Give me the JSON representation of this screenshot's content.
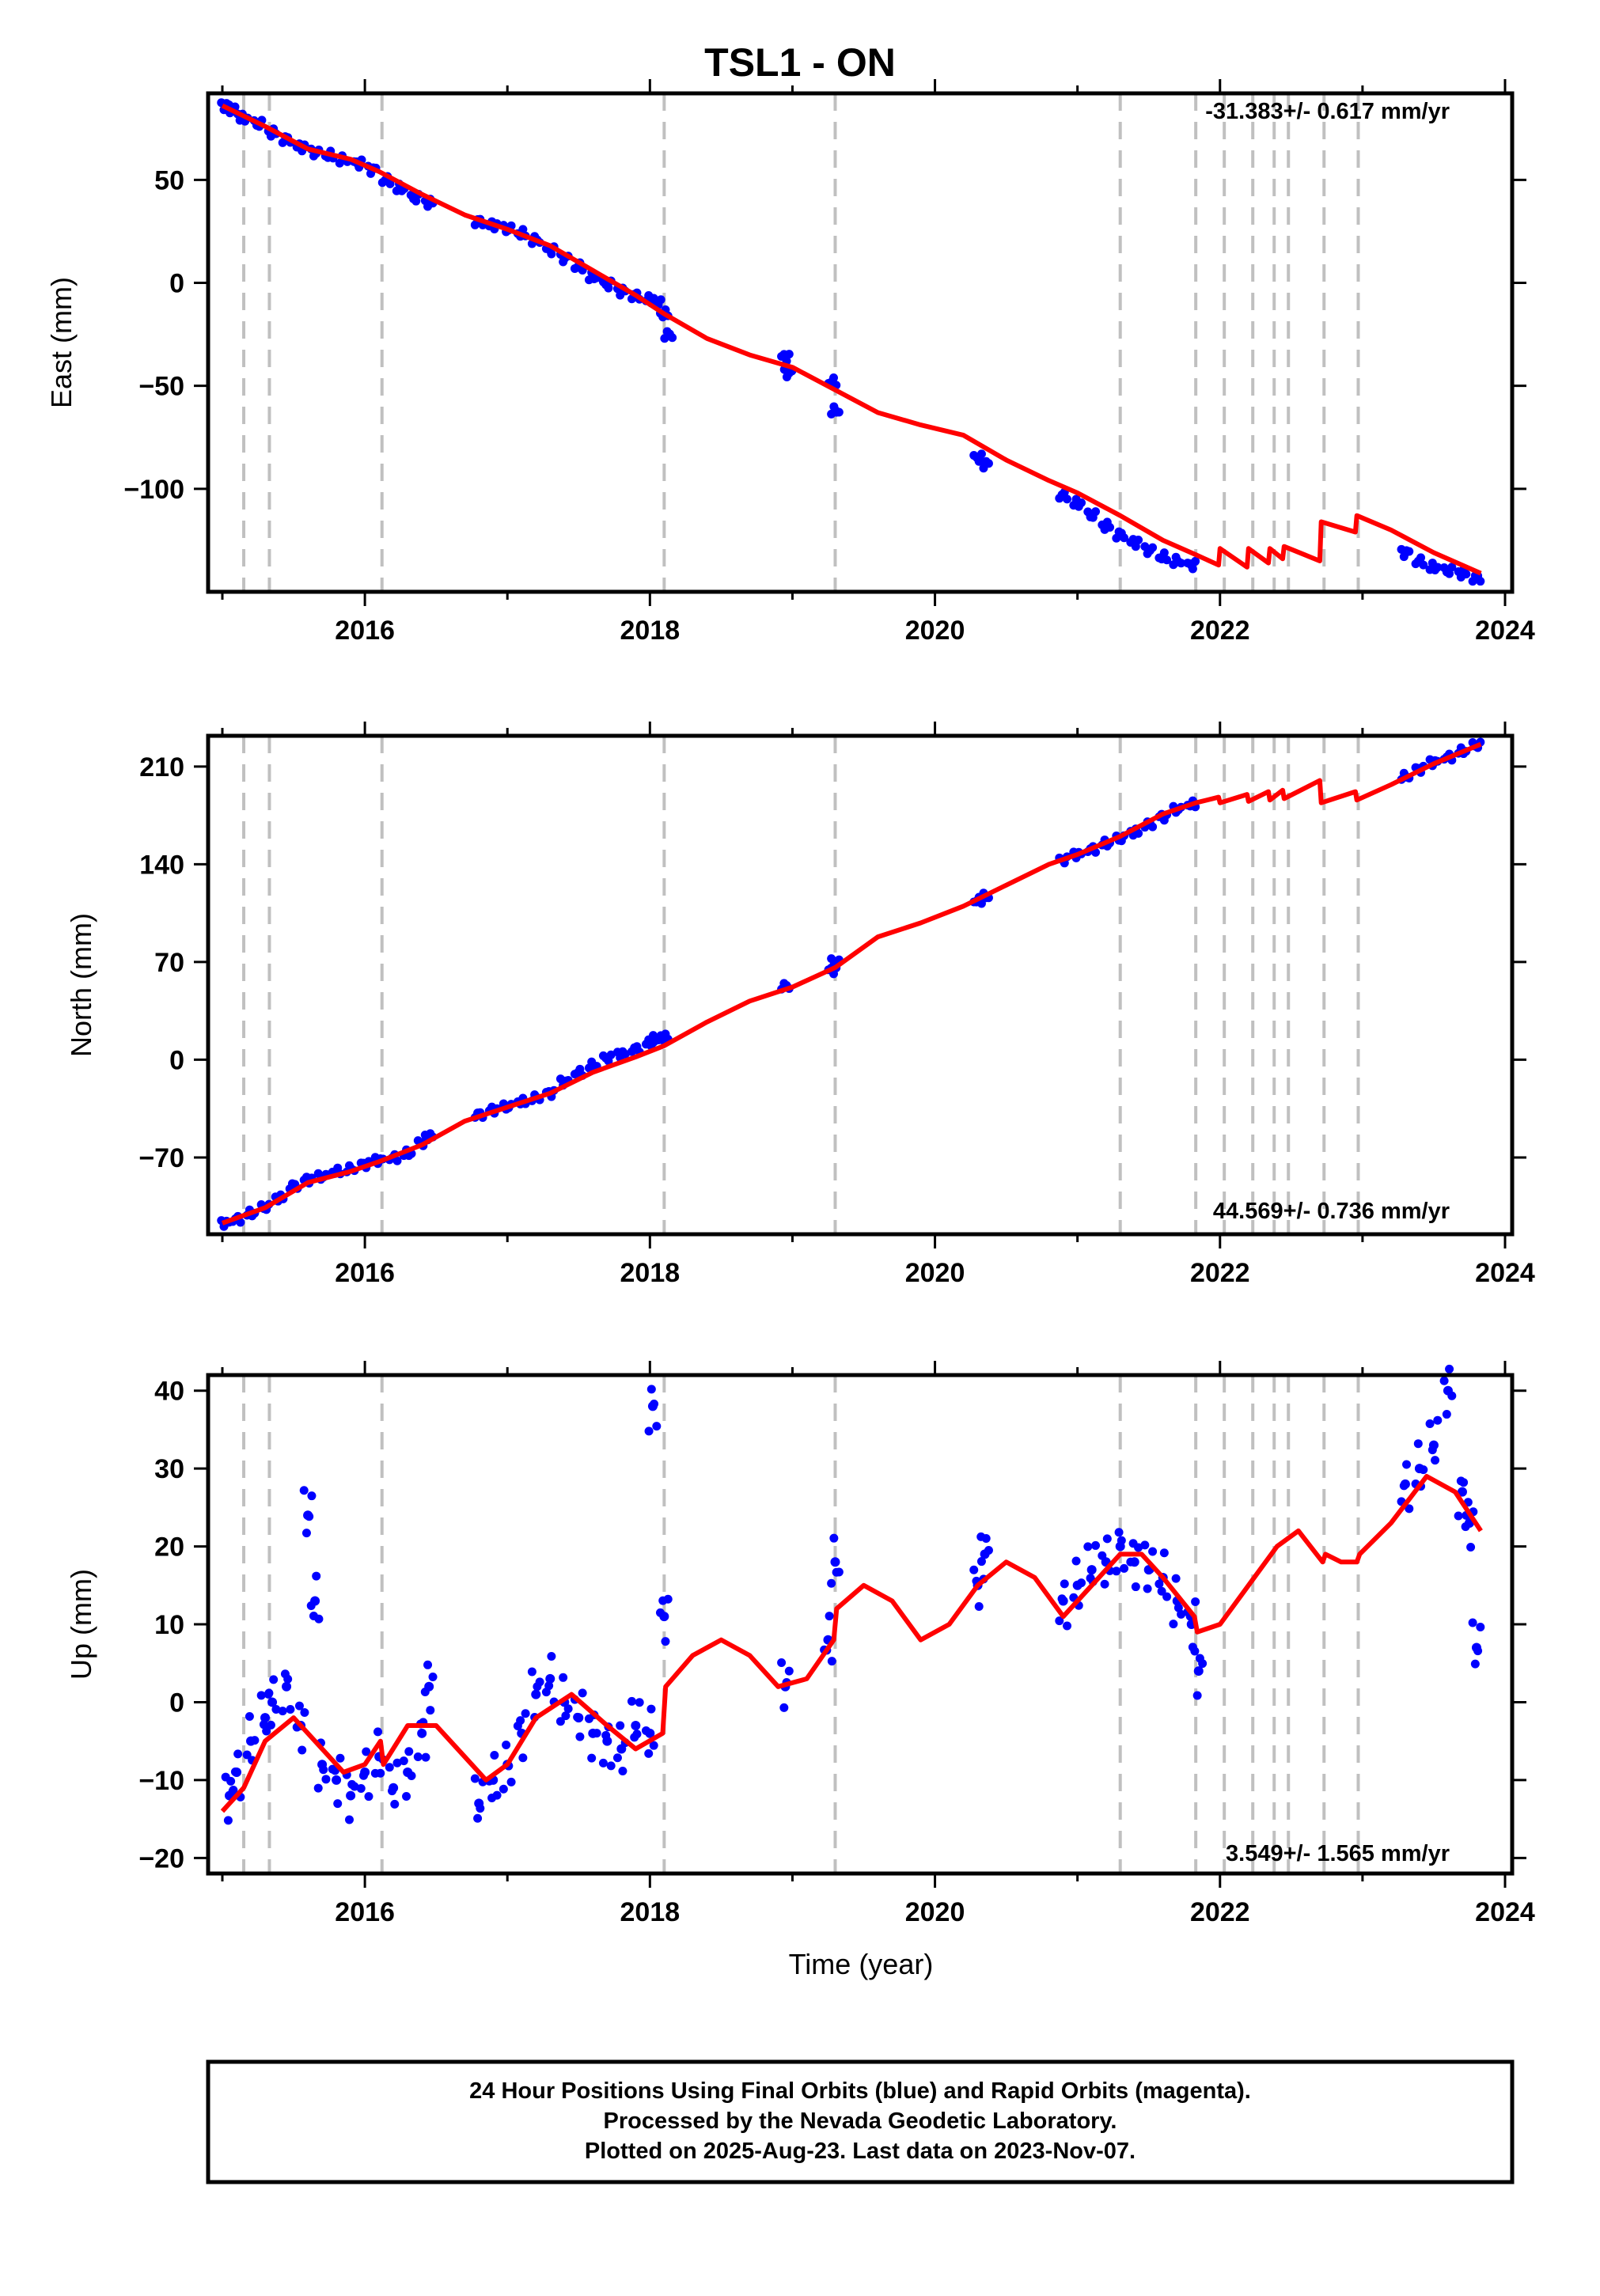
{
  "title": "TSL1 - ON",
  "xlabel": "Time (year)",
  "footer": [
    "24 Hour Positions Using Final Orbits (blue) and Rapid Orbits (magenta).",
    "Processed by the Nevada Geodetic Laboratory.",
    "Plotted on 2025-Aug-23. Last data on 2023-Nov-07."
  ],
  "colors": {
    "data": "#0000ff",
    "model": "#ff0000",
    "breaks": "#c0c0c0",
    "frame": "#000000"
  },
  "chart_data": [
    {
      "type": "scatter",
      "ylabel": "East (mm)",
      "rate_label": "-31.383+/- 0.617 mm/yr",
      "xlim": [
        2014.9,
        2024.05
      ],
      "ylim": [
        -150,
        92
      ],
      "xticks": [
        2016,
        2018,
        2020,
        2022,
        2024
      ],
      "yticks": [
        -100,
        -50,
        0,
        50
      ],
      "ytick_labels": [
        "−100",
        "−50",
        "0",
        "50"
      ],
      "breaks": [
        2015.15,
        2015.33,
        2016.12,
        2018.1,
        2019.3,
        2021.3,
        2021.83,
        2022.03,
        2022.23,
        2022.38,
        2022.48,
        2022.73,
        2022.97
      ],
      "model": {
        "x": [
          2015.0,
          2015.3,
          2015.6,
          2015.9,
          2016.1,
          2016.4,
          2016.7,
          2017.0,
          2017.3,
          2017.6,
          2017.9,
          2018.1,
          2018.4,
          2018.7,
          2019.0,
          2019.3,
          2019.6,
          2019.9,
          2020.2,
          2020.5,
          2020.8,
          2021.0,
          2021.3,
          2021.6,
          2021.83,
          2021.99,
          2022.0,
          2022.19,
          2022.2,
          2022.34,
          2022.35,
          2022.44,
          2022.45,
          2022.7,
          2022.71,
          2022.95,
          2022.96,
          2023.2,
          2023.5,
          2023.83
        ],
        "y": [
          86,
          76,
          65,
          60,
          54,
          43,
          33,
          26,
          18,
          6,
          -6,
          -15,
          -27,
          -35,
          -41,
          -52,
          -63,
          -69,
          -74,
          -86,
          -96,
          -102,
          -113,
          -125,
          -132,
          -137,
          -129,
          -138,
          -129,
          -136,
          -129,
          -134,
          -128,
          -135,
          -116,
          -121,
          -113,
          -120,
          -131,
          -141
        ]
      },
      "points": {
        "x": [
          2015.02,
          2015.08,
          2015.15,
          2015.25,
          2015.35,
          2015.45,
          2015.55,
          2015.65,
          2015.75,
          2015.85,
          2015.95,
          2016.05,
          2016.15,
          2016.25,
          2016.35,
          2016.45,
          2016.8,
          2016.9,
          2017.0,
          2017.1,
          2017.2,
          2017.3,
          2017.4,
          2017.5,
          2017.6,
          2017.7,
          2017.8,
          2017.9,
          2018.0,
          2018.05,
          2018.1,
          2018.13,
          2018.95,
          2018.97,
          2019.28,
          2019.3,
          2020.3,
          2020.35,
          2020.9,
          2021.0,
          2021.1,
          2021.2,
          2021.3,
          2021.4,
          2021.5,
          2021.6,
          2021.7,
          2021.8,
          2023.3,
          2023.4,
          2023.5,
          2023.6,
          2023.7,
          2023.8
        ],
        "y": [
          86,
          84,
          80,
          77,
          73,
          70,
          66,
          63,
          62,
          60,
          58,
          55,
          50,
          46,
          41,
          39,
          30,
          28,
          26,
          24,
          21,
          16,
          12,
          8,
          3,
          -1,
          -4,
          -6,
          -8,
          -10,
          -15,
          -25,
          -36,
          -44,
          -48,
          -62,
          -85,
          -88,
          -103,
          -107,
          -113,
          -118,
          -122,
          -126,
          -130,
          -133,
          -135,
          -137,
          -131,
          -135,
          -138,
          -140,
          -141,
          -143
        ]
      }
    },
    {
      "type": "scatter",
      "ylabel": "North (mm)",
      "rate_label": "44.569+/- 0.736 mm/yr",
      "xlim": [
        2014.9,
        2024.05
      ],
      "ylim": [
        -125,
        232
      ],
      "xticks": [
        2016,
        2018,
        2020,
        2022,
        2024
      ],
      "yticks": [
        -70,
        0,
        70,
        140,
        210
      ],
      "ytick_labels": [
        "−70",
        "0",
        "70",
        "140",
        "210"
      ],
      "breaks": [
        2015.15,
        2015.33,
        2016.12,
        2018.1,
        2019.3,
        2021.3,
        2021.83,
        2022.03,
        2022.23,
        2022.38,
        2022.48,
        2022.73,
        2022.97
      ],
      "model": {
        "x": [
          2015.0,
          2015.3,
          2015.6,
          2015.9,
          2016.1,
          2016.4,
          2016.7,
          2017.0,
          2017.3,
          2017.6,
          2017.9,
          2018.1,
          2018.4,
          2018.7,
          2019.0,
          2019.3,
          2019.6,
          2019.9,
          2020.2,
          2020.5,
          2020.8,
          2021.0,
          2021.3,
          2021.6,
          2021.83,
          2021.99,
          2022.0,
          2022.19,
          2022.2,
          2022.34,
          2022.35,
          2022.44,
          2022.45,
          2022.7,
          2022.71,
          2022.95,
          2022.96,
          2023.2,
          2023.5,
          2023.83
        ],
        "y": [
          -117,
          -106,
          -88,
          -80,
          -73,
          -61,
          -44,
          -34,
          -24,
          -9,
          2,
          10,
          27,
          42,
          52,
          66,
          88,
          98,
          110,
          125,
          140,
          147,
          160,
          176,
          184,
          188,
          184,
          190,
          185,
          192,
          186,
          193,
          187,
          200,
          184,
          192,
          186,
          197,
          212,
          226
        ]
      },
      "points": {
        "x": [
          2015.02,
          2015.1,
          2015.2,
          2015.3,
          2015.4,
          2015.5,
          2015.6,
          2015.7,
          2015.8,
          2015.9,
          2016.0,
          2016.1,
          2016.2,
          2016.3,
          2016.4,
          2016.45,
          2016.8,
          2016.9,
          2017.0,
          2017.1,
          2017.2,
          2017.3,
          2017.4,
          2017.5,
          2017.6,
          2017.7,
          2017.8,
          2017.9,
          2018.0,
          2018.05,
          2018.1,
          2018.95,
          2019.28,
          2019.3,
          2020.3,
          2020.35,
          2020.9,
          2021.0,
          2021.1,
          2021.2,
          2021.3,
          2021.4,
          2021.5,
          2021.6,
          2021.7,
          2021.8,
          2023.3,
          2023.4,
          2023.5,
          2023.6,
          2023.7,
          2023.8
        ],
        "y": [
          -117,
          -114,
          -110,
          -106,
          -99,
          -90,
          -86,
          -84,
          -80,
          -78,
          -75,
          -72,
          -70,
          -67,
          -60,
          -55,
          -39,
          -36,
          -34,
          -30,
          -27,
          -24,
          -16,
          -9,
          -4,
          1,
          4,
          8,
          12,
          15,
          16,
          53,
          64,
          70,
          114,
          117,
          143,
          147,
          151,
          155,
          158,
          163,
          169,
          174,
          179,
          183,
          203,
          208,
          213,
          217,
          221,
          225
        ]
      }
    },
    {
      "type": "scatter",
      "ylabel": "Up (mm)",
      "rate_label": "3.549+/- 1.565 mm/yr",
      "xlim": [
        2014.9,
        2024.05
      ],
      "ylim": [
        -22,
        42
      ],
      "xticks": [
        2016,
        2018,
        2020,
        2022,
        2024
      ],
      "yticks": [
        -20,
        -10,
        0,
        10,
        20,
        30,
        40
      ],
      "ytick_labels": [
        "−20",
        "−10",
        "0",
        "10",
        "20",
        "30",
        "40"
      ],
      "breaks": [
        2015.15,
        2015.33,
        2016.12,
        2018.1,
        2019.3,
        2021.3,
        2021.83,
        2022.03,
        2022.23,
        2022.38,
        2022.48,
        2022.73,
        2022.97
      ],
      "model": {
        "x": [
          2015.0,
          2015.15,
          2015.3,
          2015.5,
          2015.7,
          2015.85,
          2016.0,
          2016.11,
          2016.13,
          2016.3,
          2016.5,
          2016.7,
          2016.85,
          2017.0,
          2017.2,
          2017.45,
          2017.7,
          2017.9,
          2018.09,
          2018.11,
          2018.3,
          2018.5,
          2018.7,
          2018.9,
          2019.1,
          2019.29,
          2019.31,
          2019.5,
          2019.7,
          2019.9,
          2020.1,
          2020.3,
          2020.5,
          2020.7,
          2020.9,
          2021.1,
          2021.3,
          2021.45,
          2021.6,
          2021.82,
          2021.84,
          2022.0,
          2022.2,
          2022.4,
          2022.55,
          2022.72,
          2022.74,
          2022.85,
          2022.96,
          2022.98,
          2023.2,
          2023.45,
          2023.65,
          2023.83
        ],
        "y": [
          -14,
          -11,
          -5,
          -2,
          -6,
          -9,
          -8,
          -5,
          -8,
          -3,
          -3,
          -7,
          -10,
          -8,
          -2,
          1,
          -3,
          -6,
          -4,
          2,
          6,
          8,
          6,
          2,
          3,
          8,
          12,
          15,
          13,
          8,
          10,
          15,
          18,
          16,
          11,
          15,
          19,
          19,
          16,
          11,
          9,
          10,
          15,
          20,
          22,
          18,
          19,
          18,
          18,
          19,
          23,
          29,
          27,
          22
        ]
      },
      "points": {
        "x": [
          2015.05,
          2015.1,
          2015.2,
          2015.3,
          2015.35,
          2015.45,
          2015.55,
          2015.6,
          2015.65,
          2015.7,
          2015.8,
          2015.9,
          2016.0,
          2016.1,
          2016.2,
          2016.3,
          2016.4,
          2016.45,
          2016.8,
          2016.9,
          2017.0,
          2017.1,
          2017.2,
          2017.3,
          2017.4,
          2017.5,
          2017.6,
          2017.7,
          2017.8,
          2017.9,
          2018.0,
          2018.02,
          2018.1,
          2018.95,
          2019.25,
          2019.3,
          2020.3,
          2020.35,
          2020.9,
          2021.0,
          2021.1,
          2021.2,
          2021.3,
          2021.4,
          2021.5,
          2021.6,
          2021.7,
          2021.8,
          2021.85,
          2023.3,
          2023.4,
          2023.5,
          2023.6,
          2023.7,
          2023.75,
          2023.8
        ],
        "y": [
          -12,
          -9,
          -5,
          -2,
          0,
          2,
          -3,
          24,
          13,
          -8,
          -10,
          -12,
          -9,
          -7,
          -11,
          -9,
          -4,
          2,
          -13,
          -10,
          -8,
          -4,
          1,
          3,
          0,
          -2,
          -4,
          -5,
          -6,
          -3,
          -4,
          38,
          11,
          2,
          8,
          18,
          15,
          19,
          13,
          15,
          17,
          18,
          20,
          18,
          17,
          16,
          13,
          10,
          4,
          28,
          30,
          33,
          40,
          27,
          23,
          7
        ]
      }
    }
  ]
}
